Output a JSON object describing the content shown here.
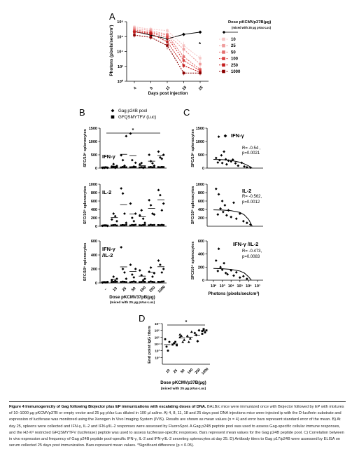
{
  "figure": {
    "panel_letters": [
      "A",
      "B",
      "C",
      "D"
    ],
    "caption_title": "Figure 4 Immunogenicity of Gag following Biojector plus EP immunizations with escalating doses of DNA.",
    "caption_body": "BALB/c mice were immunized once with Biojector followed by EP with mixtures of 10–1000 µg pKCMVp37B or empty vector and 25 µg pVax-Luc diluted in 100 µl saline. A) 4, 8, 11, 18 and 25 days post DNA injections mice were injected ip with the D-luciferin substrate and expression of luciferase was monitored using the Xenogen In Vivo Imaging System (IVIS). Results are shown as mean values (n = 4) and error bars represent standard error of the mean. B) At day 25, spleens were collected and IFN-γ, IL-2 and IFN-γ/IL-2 responses were assessed by FluoroSpot. A Gag p24B peptide pool was used to assess Gag-specific cellular immune responses, and the H2-Kᵈ restricted GFQSMYTFV (luciferase) peptide was used to assess luciferase-specific responses. Bars represent mean values for the Gag p24B peptide pool. C) Correlation between in vivo expression and frequency of Gag p24B peptide pool-specific IFN-γ, IL-2 and IFN-γ/IL-2 secreting splenocytes at day 25. D) Antibody titers to Gag p17/p24B were assessed by ELISA on serum collected 25 days post immunization. Bars represent mean values. *Significant difference (p < 0.05)."
  },
  "chart_data": [
    {
      "id": "A",
      "type": "line",
      "ylabel": "Photons (pixels/sec/cm²)",
      "xlabel": "Days post injection",
      "y_scale": "log",
      "ylim_exp": [
        0,
        8
      ],
      "ytick_labels": [
        "10⁰",
        "10²",
        "10⁴",
        "10⁶",
        "10⁸"
      ],
      "ytick_exps": [
        0,
        2,
        4,
        6,
        8
      ],
      "x": [
        4,
        8,
        11,
        18,
        25
      ],
      "xtick_labels": [
        "4",
        "8",
        "11",
        "18",
        "25"
      ],
      "legend_title": "Dose pKCMVp37B(µg)",
      "legend_subtitle": "(mixed with 25 µg pVax-Luc)",
      "annotation": "*",
      "series": [
        {
          "name": "",
          "color": "#000000",
          "values_exp": [
            6.7,
            6.2,
            5.7,
            6.3,
            6.6
          ],
          "err_exp": [
            0.2,
            0.2,
            0.3,
            0.2,
            0.2
          ]
        },
        {
          "name": "10",
          "color": "#f6c7c7",
          "values_exp": [
            7.3,
            7.0,
            6.8,
            4.8,
            3.1
          ],
          "err_exp": [
            0.2,
            0.3,
            0.3,
            0.5,
            0.4
          ]
        },
        {
          "name": "25",
          "color": "#ef9d9d",
          "values_exp": [
            7.1,
            6.8,
            6.3,
            4.3,
            2.3
          ],
          "err_exp": [
            0.2,
            0.3,
            0.3,
            0.5,
            0.4
          ]
        },
        {
          "name": "50",
          "color": "#e46f6f",
          "values_exp": [
            6.9,
            6.6,
            6.2,
            3.3,
            1.6
          ],
          "err_exp": [
            0.2,
            0.3,
            0.3,
            0.4,
            0.3
          ]
        },
        {
          "name": "100",
          "color": "#d94444",
          "values_exp": [
            6.7,
            6.5,
            5.9,
            2.8,
            1.4
          ],
          "err_exp": [
            0.2,
            0.3,
            0.3,
            0.3,
            0.3
          ]
        },
        {
          "name": "250",
          "color": "#c41e1e",
          "values_exp": [
            6.6,
            6.4,
            5.3,
            2.1,
            1.2
          ],
          "err_exp": [
            0.2,
            0.3,
            0.5,
            0.3,
            0.3
          ]
        },
        {
          "name": "1000",
          "color": "#8b0000",
          "values_exp": [
            6.2,
            5.9,
            4.8,
            1.1,
            1.1
          ],
          "err_exp": [
            0.3,
            0.3,
            0.5,
            0.3,
            0.3
          ]
        }
      ]
    },
    {
      "id": "B",
      "type": "scatter",
      "legend": [
        "Gag p24B pool",
        "GFQSMYTFV (Luc)"
      ],
      "ylabel": "SFC/10⁶ splenocytes",
      "categories": [
        "–",
        "10",
        "25",
        "50",
        "100",
        "250",
        "1000"
      ],
      "xlabel": "Dose pKCMV37pB(µg)",
      "xlabel_sub": "(mixed with 25 µg pVax-Luc)",
      "subpanels": [
        {
          "label": "IFN-γ",
          "ylim": [
            0,
            1500
          ],
          "yticks": [
            0,
            500,
            1000,
            1500
          ],
          "annotation": "*",
          "gag": [
            [
              12,
              8,
              20,
              15
            ],
            [
              60,
              150,
              10,
              80
            ],
            [
              480,
              300,
              90,
              1200
            ],
            [
              1300,
              300,
              60,
              200
            ],
            [
              140,
              190,
              10,
              40
            ],
            [
              500,
              260,
              180,
              90
            ],
            [
              620,
              400,
              350,
              500
            ]
          ],
          "gag_means": [
            14,
            75,
            520,
            465,
            95,
            260,
            470
          ],
          "luc": [
            [
              8,
              14,
              20,
              6
            ],
            [
              10,
              18,
              25,
              14
            ],
            [
              12,
              30,
              22,
              18
            ],
            [
              16,
              20,
              26,
              28
            ],
            [
              10,
              24,
              18,
              14
            ],
            [
              20,
              30,
              16,
              22
            ],
            [
              24,
              18,
              30,
              26
            ]
          ]
        },
        {
          "label": "IL-2",
          "ylim": [
            0,
            1000
          ],
          "yticks": [
            0,
            200,
            400,
            600,
            800,
            1000
          ],
          "gag": [
            [
              10,
              20,
              15,
              8
            ],
            [
              160,
              300,
              240,
              120
            ],
            [
              900,
              780,
              300,
              80
            ],
            [
              540,
              200,
              120,
              300
            ],
            [
              260,
              380,
              180,
              80
            ],
            [
              620,
              500,
              300,
              280
            ],
            [
              860,
              740,
              380,
              540
            ]
          ],
          "gag_means": [
            13,
            205,
            515,
            290,
            225,
            425,
            630
          ],
          "luc": [
            [
              6,
              10,
              14,
              8
            ],
            [
              12,
              18,
              22,
              10
            ],
            [
              14,
              20,
              16,
              24
            ],
            [
              10,
              22,
              18,
              26
            ],
            [
              16,
              12,
              20,
              24
            ],
            [
              14,
              26,
              18,
              22
            ],
            [
              20,
              16,
              24,
              18
            ]
          ]
        },
        {
          "label": "IFN-γ /IL-2",
          "ylim": [
            0,
            600
          ],
          "yticks": [
            0,
            200,
            400,
            600
          ],
          "gag": [
            [
              6,
              10,
              8,
              12
            ],
            [
              40,
              90,
              30,
              60
            ],
            [
              510,
              200,
              150,
              60
            ],
            [
              260,
              120,
              80,
              200
            ],
            [
              180,
              110,
              40,
              60
            ],
            [
              160,
              220,
              90,
              140
            ],
            [
              320,
              260,
              150,
              200
            ]
          ],
          "gag_means": [
            9,
            55,
            230,
            165,
            98,
            152,
            232
          ],
          "luc": [
            [
              4,
              8,
              6,
              10
            ],
            [
              8,
              12,
              10,
              14
            ],
            [
              10,
              14,
              12,
              8
            ],
            [
              6,
              12,
              16,
              10
            ],
            [
              8,
              10,
              14,
              12
            ],
            [
              10,
              16,
              12,
              8
            ],
            [
              12,
              10,
              14,
              16
            ]
          ]
        }
      ]
    },
    {
      "id": "C",
      "type": "scatter",
      "ylabel": "SFC/10⁶ splenocytes",
      "xlabel": "Photons (pixels/sec/cm²)",
      "x_scale": "log",
      "xtick_labels": [
        "10²",
        "10³",
        "10⁴",
        "10⁵",
        "10⁶",
        "10⁷"
      ],
      "xtick_exps": [
        2,
        3,
        4,
        5,
        6,
        7
      ],
      "subpanels": [
        {
          "label": "IFN-γ",
          "stats": [
            "R= -0.54 ,",
            "p=0.0021"
          ],
          "ylim": [
            0,
            1500
          ],
          "yticks": [
            0,
            500,
            1000,
            1500
          ],
          "points": [
            [
              2.3,
              380
            ],
            [
              2.5,
              210
            ],
            [
              2.6,
              1180
            ],
            [
              2.7,
              300
            ],
            [
              2.9,
              480
            ],
            [
              3.0,
              190
            ],
            [
              3.2,
              620
            ],
            [
              3.4,
              330
            ],
            [
              3.5,
              140
            ],
            [
              3.7,
              280
            ],
            [
              4.0,
              250
            ],
            [
              4.2,
              320
            ],
            [
              4.5,
              180
            ],
            [
              4.8,
              90
            ],
            [
              5.2,
              200
            ],
            [
              5.5,
              60
            ],
            [
              5.8,
              30
            ],
            [
              6.2,
              20
            ]
          ],
          "fit": [
            [
              2.0,
              330
            ],
            [
              3.0,
              320
            ],
            [
              4.0,
              290
            ],
            [
              5.0,
              220
            ],
            [
              5.5,
              160
            ],
            [
              6.0,
              80
            ],
            [
              6.4,
              0
            ]
          ]
        },
        {
          "label": "IL-2",
          "stats": [
            "R= -0.562,",
            "p=0.0012"
          ],
          "ylim": [
            0,
            1000
          ],
          "yticks": [
            200,
            400,
            600,
            800,
            1000
          ],
          "points": [
            [
              2.3,
              890
            ],
            [
              2.5,
              280
            ],
            [
              2.6,
              760
            ],
            [
              2.8,
              420
            ],
            [
              3.0,
              600
            ],
            [
              3.1,
              340
            ],
            [
              3.3,
              500
            ],
            [
              3.5,
              260
            ],
            [
              3.7,
              380
            ],
            [
              4.0,
              220
            ],
            [
              4.3,
              560
            ],
            [
              4.6,
              180
            ],
            [
              5.0,
              300
            ],
            [
              5.4,
              120
            ],
            [
              5.8,
              80
            ],
            [
              6.2,
              40
            ]
          ],
          "fit": [
            [
              2.0,
              390
            ],
            [
              3.0,
              385
            ],
            [
              4.0,
              370
            ],
            [
              5.0,
              330
            ],
            [
              5.5,
              270
            ],
            [
              6.0,
              160
            ],
            [
              6.4,
              0
            ]
          ]
        },
        {
          "label": "IFN-γ /IL-2",
          "stats": [
            "R= -0.473,",
            "p=0.0083"
          ],
          "ylim": [
            0,
            600
          ],
          "yticks": [
            0,
            200,
            400,
            600
          ],
          "points": [
            [
              2.3,
              300
            ],
            [
              2.5,
              140
            ],
            [
              2.6,
              480
            ],
            [
              2.8,
              200
            ],
            [
              3.0,
              160
            ],
            [
              3.2,
              260
            ],
            [
              3.4,
              110
            ],
            [
              3.6,
              90
            ],
            [
              4.0,
              150
            ],
            [
              4.3,
              70
            ],
            [
              4.6,
              120
            ],
            [
              5.0,
              40
            ],
            [
              5.4,
              60
            ],
            [
              5.8,
              20
            ]
          ],
          "fit": [
            [
              2.0,
              180
            ],
            [
              3.0,
              175
            ],
            [
              4.0,
              165
            ],
            [
              5.0,
              140
            ],
            [
              5.5,
              110
            ],
            [
              6.0,
              50
            ],
            [
              6.3,
              0
            ]
          ]
        }
      ]
    },
    {
      "id": "D",
      "type": "scatter",
      "ylabel": "End point IgG titers",
      "y_scale": "log",
      "ytick_labels": [
        "10²",
        "10³",
        "10⁴",
        "10⁵",
        "10⁶",
        "10⁷"
      ],
      "ytick_exps": [
        2,
        3,
        4,
        5,
        6,
        7
      ],
      "ylim_exp": [
        1,
        7
      ],
      "categories": [
        "10",
        "25",
        "50",
        "100",
        "250",
        "1000"
      ],
      "xlabel": "Dose pKCMVp37B(µg)",
      "xlabel_sub": "(mixed with 25 µg pVax-Luc)",
      "annotation": "*",
      "points_exp": [
        [
          4.7,
          3.6,
          3.0,
          4.3
        ],
        [
          3.9,
          4.1,
          4.3,
          3.8
        ],
        [
          5.0,
          5.2,
          4.3,
          4.6,
          5.4
        ],
        [
          5.2,
          4.3,
          4.8,
          5.8
        ],
        [
          5.6,
          5.3,
          4.4,
          6.0
        ],
        [
          5.9,
          6.1,
          5.7,
          6.0,
          5.5,
          6.2
        ]
      ],
      "means_exp": [
        3.9,
        4.0,
        4.9,
        5.0,
        5.3,
        5.9
      ]
    }
  ]
}
